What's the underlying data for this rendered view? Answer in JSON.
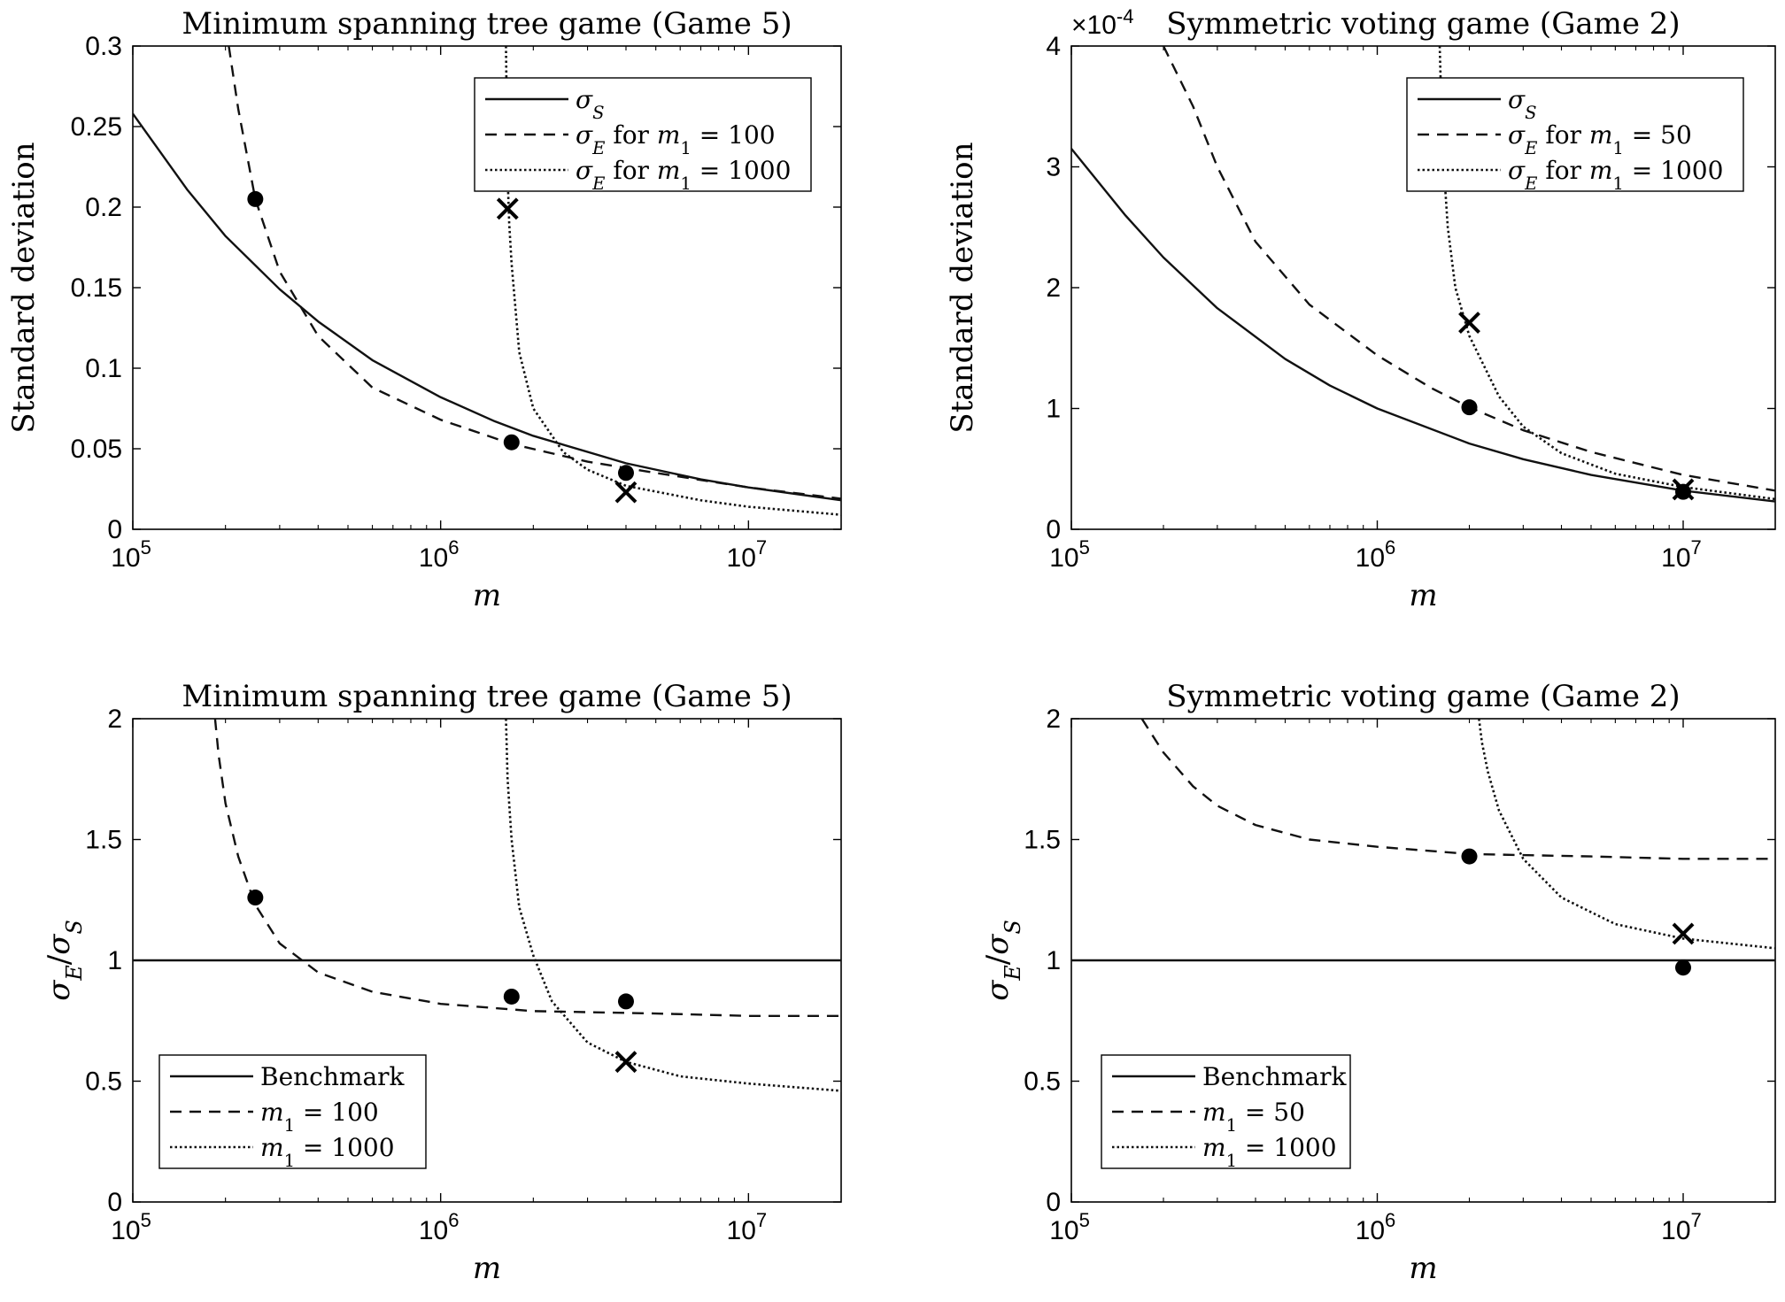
{
  "chart_data": [
    {
      "id": "tl",
      "type": "line",
      "title": "Minimum spanning tree game (Game 5)",
      "xlabel": "m",
      "ylabel": "Standard deviation",
      "xscale": "log",
      "xlim": [
        100000,
        20000000
      ],
      "ylim": [
        0,
        0.3
      ],
      "x_ticks": [
        {
          "value": 100000,
          "base": "10",
          "exp": "5"
        },
        {
          "value": 1000000,
          "base": "10",
          "exp": "6"
        },
        {
          "value": 10000000,
          "base": "10",
          "exp": "7"
        }
      ],
      "y_ticks": [
        {
          "value": 0,
          "label": "0"
        },
        {
          "value": 0.05,
          "label": "0.05"
        },
        {
          "value": 0.1,
          "label": "0.1"
        },
        {
          "value": 0.15,
          "label": "0.15"
        },
        {
          "value": 0.2,
          "label": "0.2"
        },
        {
          "value": 0.25,
          "label": "0.25"
        },
        {
          "value": 0.3,
          "label": "0.3"
        }
      ],
      "legend_position": "top-right",
      "series": [
        {
          "name": "σS",
          "style": "solid",
          "x": [
            100000,
            150000,
            200000,
            300000,
            400000,
            600000,
            1000000,
            1500000,
            2000000,
            4000000,
            7000000,
            10000000,
            20000000
          ],
          "values": [
            0.258,
            0.211,
            0.182,
            0.149,
            0.129,
            0.105,
            0.082,
            0.067,
            0.058,
            0.041,
            0.031,
            0.026,
            0.018
          ]
        },
        {
          "name": "σE for m1 = 100",
          "style": "dashed",
          "x": [
            205000,
            220000,
            250000,
            300000,
            400000,
            600000,
            1000000,
            1700000,
            3000000,
            5000000,
            10000000,
            20000000
          ],
          "values": [
            0.3,
            0.261,
            0.205,
            0.16,
            0.12,
            0.088,
            0.068,
            0.053,
            0.042,
            0.035,
            0.026,
            0.019
          ]
        },
        {
          "name": "σE for m1 = 1000",
          "style": "dotted",
          "x": [
            1630000,
            1640000,
            1650000,
            1670000,
            1700000,
            1800000,
            2000000,
            2500000,
            3000000,
            4000000,
            7000000,
            10000000,
            20000000
          ],
          "values": [
            0.3,
            0.26,
            0.22,
            0.19,
            0.165,
            0.11,
            0.075,
            0.048,
            0.037,
            0.027,
            0.018,
            0.014,
            0.009
          ]
        }
      ],
      "markers": [
        {
          "shape": "dot",
          "x": 250000,
          "y": 0.205
        },
        {
          "shape": "dot",
          "x": 1700000,
          "y": 0.054
        },
        {
          "shape": "dot",
          "x": 4000000,
          "y": 0.035
        },
        {
          "shape": "cross",
          "x": 1650000,
          "y": 0.199
        },
        {
          "shape": "cross",
          "x": 4000000,
          "y": 0.023
        }
      ]
    },
    {
      "id": "tr",
      "type": "line",
      "title": "Symmetric voting game (Game 2)",
      "xlabel": "m",
      "ylabel": "Standard deviation",
      "xscale": "log",
      "xlim": [
        100000,
        20000000
      ],
      "ylim": [
        0,
        4
      ],
      "y_multiplier": {
        "base": "×10",
        "exp": "-4"
      },
      "x_ticks": [
        {
          "value": 100000,
          "base": "10",
          "exp": "5"
        },
        {
          "value": 1000000,
          "base": "10",
          "exp": "6"
        },
        {
          "value": 10000000,
          "base": "10",
          "exp": "7"
        }
      ],
      "y_ticks": [
        {
          "value": 0,
          "label": "0"
        },
        {
          "value": 1,
          "label": "1"
        },
        {
          "value": 2,
          "label": "2"
        },
        {
          "value": 3,
          "label": "3"
        },
        {
          "value": 4,
          "label": "4"
        }
      ],
      "legend_position": "top-right",
      "series": [
        {
          "name": "σS",
          "style": "solid",
          "x": [
            100000,
            150000,
            200000,
            300000,
            500000,
            700000,
            1000000,
            2000000,
            3000000,
            5000000,
            10000000,
            20000000
          ],
          "values": [
            3.15,
            2.6,
            2.25,
            1.83,
            1.41,
            1.19,
            1.0,
            0.71,
            0.58,
            0.45,
            0.32,
            0.23
          ]
        },
        {
          "name": "σE for m1 = 50",
          "style": "dashed",
          "x": [
            200000,
            250000,
            300000,
            400000,
            600000,
            1000000,
            1500000,
            2000000,
            3000000,
            5000000,
            10000000,
            20000000
          ],
          "values": [
            4.0,
            3.5,
            3.0,
            2.38,
            1.86,
            1.44,
            1.17,
            1.01,
            0.82,
            0.64,
            0.45,
            0.32
          ]
        },
        {
          "name": "σE for m1 = 1000",
          "style": "dotted",
          "x": [
            1600000,
            1620000,
            1650000,
            1700000,
            1800000,
            2000000,
            2500000,
            3000000,
            4000000,
            6000000,
            10000000,
            20000000
          ],
          "values": [
            4.0,
            3.5,
            3.0,
            2.5,
            2.0,
            1.6,
            1.1,
            0.85,
            0.63,
            0.46,
            0.35,
            0.25
          ]
        }
      ],
      "markers": [
        {
          "shape": "dot",
          "x": 2000000,
          "y": 1.01
        },
        {
          "shape": "dot",
          "x": 10000000,
          "y": 0.31
        },
        {
          "shape": "cross",
          "x": 2000000,
          "y": 1.71
        },
        {
          "shape": "cross",
          "x": 10000000,
          "y": 0.33
        }
      ]
    },
    {
      "id": "bl",
      "type": "line",
      "title": "Minimum spanning tree game (Game 5)",
      "xlabel": "m",
      "ylabel": "σE/σS",
      "xscale": "log",
      "xlim": [
        100000,
        20000000
      ],
      "ylim": [
        0,
        2
      ],
      "x_ticks": [
        {
          "value": 100000,
          "base": "10",
          "exp": "5"
        },
        {
          "value": 1000000,
          "base": "10",
          "exp": "6"
        },
        {
          "value": 10000000,
          "base": "10",
          "exp": "7"
        }
      ],
      "y_ticks": [
        {
          "value": 0,
          "label": "0"
        },
        {
          "value": 0.5,
          "label": "0.5"
        },
        {
          "value": 1,
          "label": "1"
        },
        {
          "value": 1.5,
          "label": "1.5"
        },
        {
          "value": 2,
          "label": "2"
        }
      ],
      "legend_position": "bottom-left",
      "series": [
        {
          "name": "Benchmark",
          "style": "solid",
          "x": [
            100000,
            20000000
          ],
          "values": [
            1,
            1
          ]
        },
        {
          "name": "m1 = 100",
          "style": "dashed",
          "x": [
            185000,
            190000,
            200000,
            220000,
            250000,
            300000,
            400000,
            600000,
            1000000,
            2000000,
            5000000,
            10000000,
            20000000
          ],
          "values": [
            2.0,
            1.85,
            1.65,
            1.43,
            1.23,
            1.07,
            0.95,
            0.87,
            0.82,
            0.79,
            0.78,
            0.77,
            0.77
          ]
        },
        {
          "name": "m1 = 1000",
          "style": "dotted",
          "x": [
            1630000,
            1650000,
            1700000,
            1800000,
            2000000,
            2300000,
            3000000,
            4000000,
            6000000,
            10000000,
            20000000
          ],
          "values": [
            2.0,
            1.75,
            1.5,
            1.22,
            1.02,
            0.83,
            0.66,
            0.58,
            0.52,
            0.49,
            0.46
          ]
        }
      ],
      "markers": [
        {
          "shape": "dot",
          "x": 250000,
          "y": 1.26
        },
        {
          "shape": "dot",
          "x": 1700000,
          "y": 0.85
        },
        {
          "shape": "dot",
          "x": 4000000,
          "y": 0.83
        },
        {
          "shape": "cross",
          "x": 4000000,
          "y": 0.58
        }
      ]
    },
    {
      "id": "br",
      "type": "line",
      "title": "Symmetric voting game (Game 2)",
      "xlabel": "m",
      "ylabel": "σE/σS",
      "xscale": "log",
      "xlim": [
        100000,
        20000000
      ],
      "ylim": [
        0,
        2
      ],
      "x_ticks": [
        {
          "value": 100000,
          "base": "10",
          "exp": "5"
        },
        {
          "value": 1000000,
          "base": "10",
          "exp": "6"
        },
        {
          "value": 10000000,
          "base": "10",
          "exp": "7"
        }
      ],
      "y_ticks": [
        {
          "value": 0,
          "label": "0"
        },
        {
          "value": 0.5,
          "label": "0.5"
        },
        {
          "value": 1,
          "label": "1"
        },
        {
          "value": 1.5,
          "label": "1.5"
        },
        {
          "value": 2,
          "label": "2"
        }
      ],
      "legend_position": "bottom-left",
      "series": [
        {
          "name": "Benchmark",
          "style": "solid",
          "x": [
            100000,
            20000000
          ],
          "values": [
            1,
            1
          ]
        },
        {
          "name": "m1 = 50",
          "style": "dashed",
          "x": [
            170000,
            200000,
            250000,
            300000,
            400000,
            600000,
            1000000,
            2000000,
            5000000,
            10000000,
            20000000
          ],
          "values": [
            2.0,
            1.86,
            1.72,
            1.64,
            1.56,
            1.5,
            1.47,
            1.44,
            1.43,
            1.42,
            1.42
          ]
        },
        {
          "name": "m1 = 1000",
          "style": "dotted",
          "x": [
            2150000,
            2200000,
            2300000,
            2500000,
            3000000,
            4000000,
            6000000,
            10000000,
            20000000
          ],
          "values": [
            2.0,
            1.9,
            1.78,
            1.62,
            1.42,
            1.26,
            1.15,
            1.09,
            1.05
          ]
        }
      ],
      "markers": [
        {
          "shape": "dot",
          "x": 2000000,
          "y": 1.43
        },
        {
          "shape": "dot",
          "x": 10000000,
          "y": 0.97
        },
        {
          "shape": "cross",
          "x": 10000000,
          "y": 1.11
        }
      ]
    }
  ]
}
